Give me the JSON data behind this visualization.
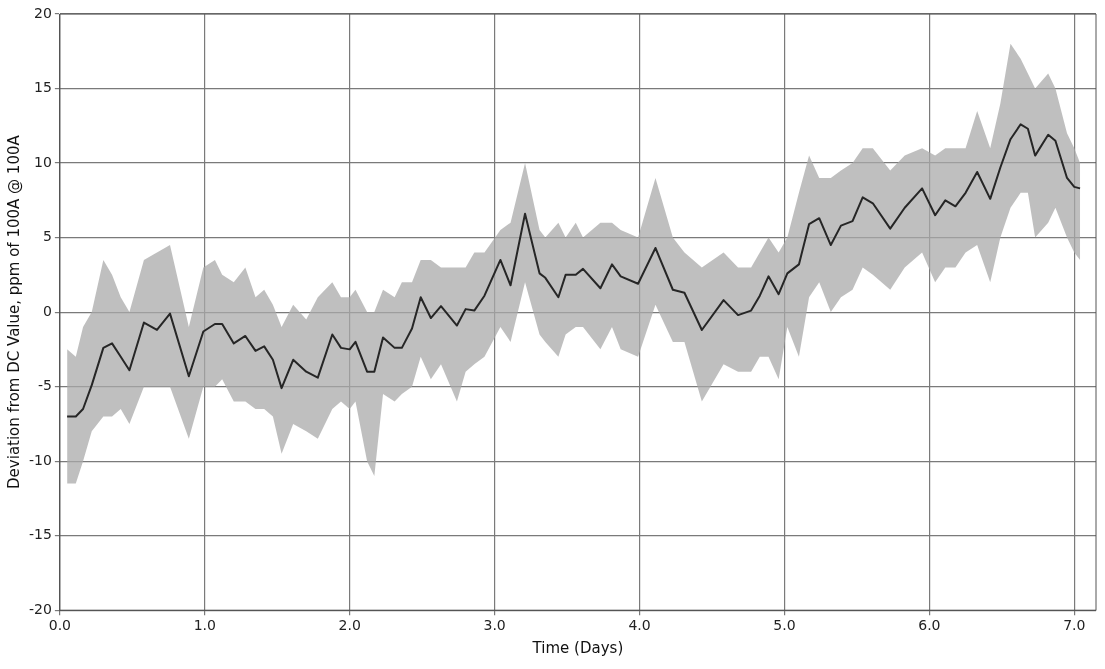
{
  "chart_data": {
    "type": "line",
    "xlabel": "Time (Days)",
    "ylabel": "Deviation from DC Value, ppm of 100A @ 100A",
    "x": [
      0.05,
      0.11,
      0.16,
      0.22,
      0.3,
      0.36,
      0.42,
      0.48,
      0.58,
      0.67,
      0.76,
      0.89,
      0.99,
      1.07,
      1.12,
      1.2,
      1.28,
      1.35,
      1.41,
      1.47,
      1.53,
      1.61,
      1.7,
      1.78,
      1.88,
      1.94,
      2.0,
      2.04,
      2.12,
      2.17,
      2.23,
      2.31,
      2.36,
      2.43,
      2.49,
      2.56,
      2.63,
      2.74,
      2.8,
      2.86,
      2.93,
      3.04,
      3.11,
      3.21,
      3.31,
      3.35,
      3.44,
      3.49,
      3.56,
      3.61,
      3.73,
      3.81,
      3.87,
      3.99,
      4.11,
      4.23,
      4.31,
      4.43,
      4.58,
      4.68,
      4.77,
      4.83,
      4.89,
      4.96,
      5.02,
      5.1,
      5.17,
      5.24,
      5.32,
      5.39,
      5.47,
      5.54,
      5.61,
      5.73,
      5.83,
      5.95,
      6.04,
      6.11,
      6.18,
      6.25,
      6.33,
      6.42,
      6.49,
      6.56,
      6.63,
      6.68,
      6.73,
      6.82,
      6.87,
      6.95,
      7.0,
      7.04
    ],
    "series": [
      {
        "color": "#262626",
        "values": [
          -7,
          -7,
          -6.5,
          -4.9,
          -2.4,
          -2.1,
          -3,
          -3.9,
          -0.7,
          -1.2,
          -0.1,
          -4.3,
          -1.3,
          -0.8,
          -0.8,
          -2.1,
          -1.6,
          -2.6,
          -2.3,
          -3.2,
          -5.1,
          -3.2,
          -4,
          -4.4,
          -1.5,
          -2.4,
          -2.5,
          -2,
          -4,
          -4,
          -1.7,
          -2.4,
          -2.4,
          -1.1,
          1,
          -0.4,
          0.4,
          -0.9,
          0.2,
          0.1,
          1.1,
          3.5,
          1.8,
          6.6,
          2.6,
          2.3,
          1,
          2.5,
          2.5,
          2.9,
          1.6,
          3.2,
          2.4,
          1.9,
          4.3,
          1.5,
          1.3,
          -1.2,
          0.8,
          -0.2,
          0.1,
          1.1,
          2.4,
          1.2,
          2.6,
          3.2,
          5.9,
          6.3,
          4.5,
          5.8,
          6.1,
          7.7,
          7.3,
          5.6,
          7,
          8.3,
          6.5,
          7.5,
          7.1,
          8,
          9.4,
          7.6,
          9.7,
          11.6,
          12.6,
          12.3,
          10.5,
          11.9,
          11.5,
          9,
          8.4,
          8.3
        ],
        "lower": [
          -11.5,
          -11.5,
          -10,
          -8,
          -7,
          -7,
          -6.5,
          -7.5,
          -5,
          -5,
          -5,
          -8.5,
          -5,
          -5,
          -4.5,
          -6,
          -6,
          -6.5,
          -6.5,
          -7,
          -9.5,
          -7.5,
          -8,
          -8.5,
          -6.5,
          -6,
          -6.5,
          -6,
          -10,
          -11,
          -5.5,
          -6,
          -5.5,
          -5,
          -3,
          -4.5,
          -3.5,
          -6,
          -4,
          -3.5,
          -3,
          -1,
          -2,
          2,
          -1.5,
          -2,
          -3,
          -1.5,
          -1,
          -1,
          -2.5,
          -1,
          -2.5,
          -3,
          0.5,
          -2,
          -2,
          -6,
          -3.5,
          -4,
          -4,
          -3,
          -3,
          -4.5,
          -1,
          -3,
          1,
          2,
          0,
          1,
          1.5,
          3,
          2.5,
          1.5,
          3,
          4,
          2,
          3,
          3,
          4,
          4.5,
          2,
          5,
          7,
          8,
          8,
          5,
          6,
          7,
          5,
          4,
          3.5
        ],
        "upper": [
          -2.5,
          -3,
          -1,
          0,
          3.5,
          2.5,
          1,
          0,
          3.5,
          4,
          4.5,
          -1,
          3,
          3.5,
          2.5,
          2,
          3,
          1,
          1.5,
          0.5,
          -1,
          0.5,
          -0.5,
          1,
          2,
          1,
          1,
          1.5,
          0,
          0,
          1.5,
          1,
          2,
          2,
          3.5,
          3.5,
          3,
          3,
          3,
          4,
          4,
          5.5,
          6,
          10,
          5.5,
          5,
          6,
          5,
          6,
          5,
          6,
          6,
          5.5,
          5,
          9,
          5,
          4,
          3,
          4,
          3,
          3,
          4,
          5,
          4,
          5,
          8,
          10.5,
          9,
          9,
          9.5,
          10,
          11,
          11,
          9.5,
          10.5,
          11,
          10.5,
          11,
          11,
          11,
          13.5,
          11,
          14,
          18,
          17,
          16,
          15,
          16,
          15,
          12,
          11,
          10
        ]
      }
    ],
    "xlim": [
      0,
      7.15
    ],
    "xticks": [
      {
        "value": 0,
        "label": "0.0"
      },
      {
        "value": 1,
        "label": "1.0"
      },
      {
        "value": 2,
        "label": "2.0"
      },
      {
        "value": 3,
        "label": "3.0"
      },
      {
        "value": 4,
        "label": "4.0"
      },
      {
        "value": 5,
        "label": "5.0"
      },
      {
        "value": 6,
        "label": "6.0"
      },
      {
        "value": 7,
        "label": "7.0"
      }
    ],
    "ylim": [
      -20,
      20
    ],
    "yticks": [
      -20,
      -15,
      -10,
      -5,
      0,
      5,
      10,
      15,
      20
    ],
    "grid": true,
    "legend": false,
    "marker": "none",
    "line_style": "solid"
  }
}
